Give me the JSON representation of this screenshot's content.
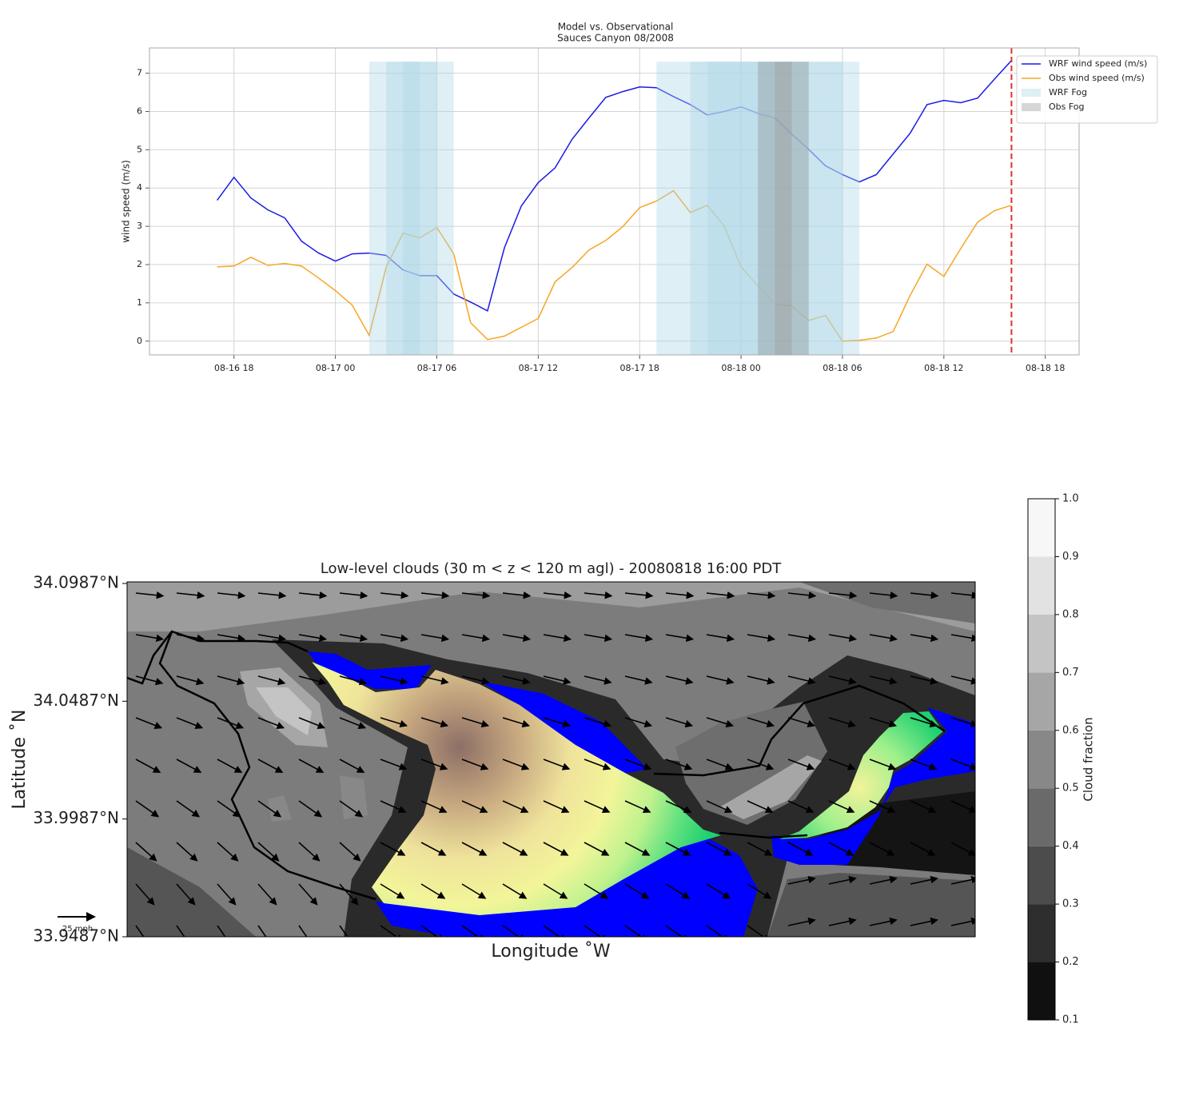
{
  "chart_data": [
    {
      "type": "line",
      "title": "Model vs. Observational",
      "subtitle": "Sauces Canyon 08/2008",
      "ylabel": "wind speed (m/s)",
      "x": [
        "08-16 17",
        "08-16 18",
        "08-16 19",
        "08-16 20",
        "08-16 21",
        "08-16 22",
        "08-16 23",
        "08-17 00",
        "08-17 01",
        "08-17 02",
        "08-17 03",
        "08-17 04",
        "08-17 05",
        "08-17 06",
        "08-17 07",
        "08-17 08",
        "08-17 09",
        "08-17 10",
        "08-17 11",
        "08-17 12",
        "08-17 13",
        "08-17 14",
        "08-17 15",
        "08-17 16",
        "08-17 17",
        "08-17 18",
        "08-17 19",
        "08-17 20",
        "08-17 21",
        "08-17 22",
        "08-17 23",
        "08-18 00",
        "08-18 01",
        "08-18 02",
        "08-18 03",
        "08-18 04",
        "08-18 05",
        "08-18 06",
        "08-18 07",
        "08-18 08",
        "08-18 09",
        "08-18 10",
        "08-18 11",
        "08-18 12",
        "08-18 13",
        "08-18 14",
        "08-18 15",
        "08-18 16"
      ],
      "series": [
        {
          "name": "WRF wind speed (m/s)",
          "color": "#1a1ae6",
          "values": [
            3.68,
            4.28,
            3.74,
            3.43,
            3.22,
            2.61,
            2.3,
            2.09,
            2.28,
            2.3,
            2.24,
            1.86,
            1.71,
            1.71,
            1.23,
            1.02,
            0.79,
            2.44,
            3.53,
            4.14,
            4.53,
            5.27,
            5.83,
            6.37,
            6.52,
            6.64,
            6.62,
            6.39,
            6.18,
            5.91,
            6.0,
            6.12,
            5.95,
            5.83,
            5.41,
            5.01,
            4.58,
            4.35,
            4.16,
            4.35,
            4.89,
            5.43,
            6.18,
            6.29,
            6.23,
            6.35,
            6.85,
            7.33
          ]
        },
        {
          "name": "Obs wind speed (m/s)",
          "color": "#f5a623",
          "values": [
            1.94,
            1.96,
            2.19,
            1.98,
            2.03,
            1.96,
            1.65,
            1.32,
            0.94,
            0.15,
            1.92,
            2.82,
            2.7,
            2.97,
            2.28,
            0.48,
            0.04,
            0.13,
            0.36,
            0.59,
            1.55,
            1.92,
            2.38,
            2.63,
            2.99,
            3.49,
            3.66,
            3.93,
            3.36,
            3.55,
            3.01,
            1.94,
            1.44,
            0.96,
            0.92,
            0.54,
            0.67,
            0.0,
            0.02,
            0.08,
            0.25,
            1.19,
            2.01,
            1.69,
            2.42,
            3.11,
            3.41,
            3.55
          ]
        }
      ],
      "fog": [
        {
          "name": "WRF Fog",
          "color": "#add8e6",
          "top": 7.3,
          "spans": [
            [
              "08-17 02",
              "08-17 07"
            ],
            [
              "08-17 03",
              "08-17 06"
            ],
            [
              "08-17 04",
              "08-17 05"
            ],
            [
              "08-17 19",
              "08-18 07"
            ],
            [
              "08-17 21",
              "08-18 06"
            ],
            [
              "08-17 22",
              "08-18 04"
            ],
            [
              "08-18 01",
              "08-18 02"
            ]
          ]
        },
        {
          "name": "Obs Fog",
          "color": "#999999",
          "top": 7.3,
          "spans": [
            [
              "08-18 01",
              "08-18 04"
            ],
            [
              "08-18 02",
              "08-18 03"
            ]
          ]
        }
      ],
      "vline": {
        "x": "08-18 16",
        "color": "#e03030"
      },
      "xlim": [
        "08-16 13",
        "08-18 20"
      ],
      "xticks": [
        "08-16 18",
        "08-17 00",
        "08-17 06",
        "08-17 12",
        "08-17 18",
        "08-18 00",
        "08-18 06",
        "08-18 12",
        "08-18 18"
      ],
      "ylim": [
        -0.36,
        7.66
      ],
      "yticks": [
        0,
        1,
        2,
        3,
        4,
        5,
        6,
        7
      ],
      "grid": true,
      "legend": "upper right"
    },
    {
      "type": "contour",
      "title": "Low-level clouds (30 m < z < 120 m agl) - 20080818 16:00 PDT",
      "xlabel": "Longitude ˚W",
      "ylabel": "Latitude ˚N",
      "ylim": [
        33.9487,
        34.0987
      ],
      "yticks": [
        {
          "value": 34.0987,
          "label": "34.0987°N"
        },
        {
          "value": 34.0487,
          "label": "34.0487°N"
        },
        {
          "value": 33.9987,
          "label": "33.9987°N"
        },
        {
          "value": 33.9487,
          "label": "33.9487°N"
        }
      ],
      "quiver_key": "25 mph",
      "colorbar": {
        "label": "Cloud fraction",
        "lim": [
          0.1,
          1.0
        ],
        "ticks": [
          0.1,
          0.2,
          0.3,
          0.4,
          0.5,
          0.6,
          0.7,
          0.8,
          0.9,
          {
            "value": 1.0,
            "label": "1.0"
          }
        ],
        "colors": [
          "#101010",
          "#2e2e2e",
          "#4c4c4c",
          "#6a6a6a",
          "#888888",
          "#a6a6a6",
          "#c4c4c4",
          "#e2e2e2",
          "#f7f7f7"
        ]
      }
    }
  ]
}
